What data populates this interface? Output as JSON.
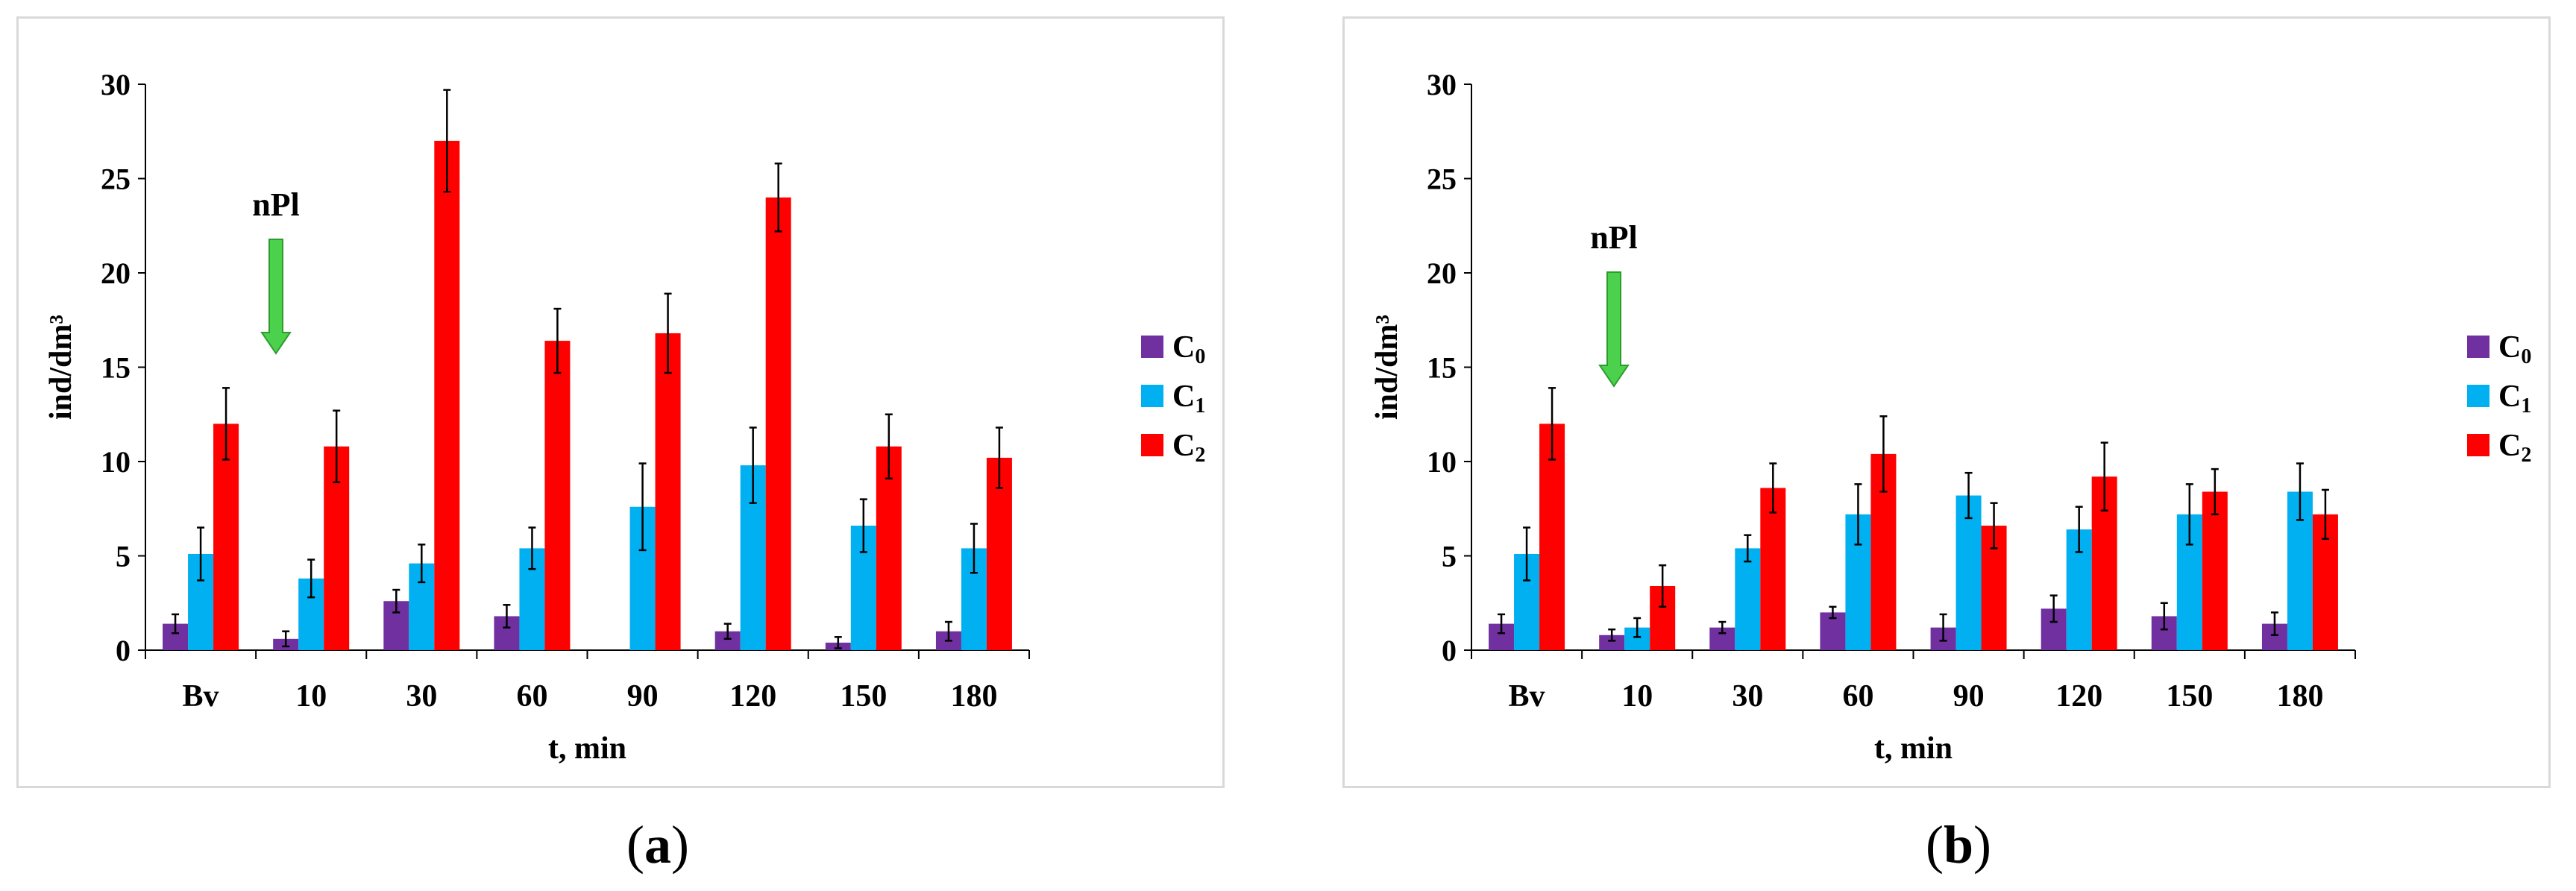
{
  "colors": {
    "c0": "#7030A0",
    "c1": "#00B0F0",
    "c2": "#FF0000",
    "arrow_fill": "#4CD14C",
    "arrow_stroke": "#2E9B2E"
  },
  "chart_data": [
    {
      "type": "bar",
      "panel_label": "a",
      "caption_open": "(",
      "caption_close": ")",
      "categories": [
        "Bv",
        "10",
        "30",
        "60",
        "90",
        "120",
        "150",
        "180"
      ],
      "series": [
        {
          "name": "C0",
          "name_base": "C",
          "name_sub": "0",
          "values": [
            1.4,
            0.6,
            2.6,
            1.8,
            0,
            1.0,
            0.4,
            1.0
          ],
          "errors": [
            0.5,
            0.4,
            0.6,
            0.6,
            0,
            0.4,
            0.3,
            0.5
          ]
        },
        {
          "name": "C1",
          "name_base": "C",
          "name_sub": "1",
          "values": [
            5.1,
            3.8,
            4.6,
            5.4,
            7.6,
            9.8,
            6.6,
            5.4
          ],
          "errors": [
            1.4,
            1.0,
            1.0,
            1.1,
            2.3,
            2.0,
            1.4,
            1.3
          ]
        },
        {
          "name": "C2",
          "name_base": "C",
          "name_sub": "2",
          "values": [
            12.0,
            10.8,
            27.0,
            16.4,
            16.8,
            24.0,
            10.8,
            10.2
          ],
          "errors": [
            1.9,
            1.9,
            2.7,
            1.7,
            2.1,
            1.8,
            1.7,
            1.6
          ]
        }
      ],
      "ylim": [
        0,
        30
      ],
      "yticks": [
        0,
        5,
        10,
        15,
        20,
        25,
        30
      ],
      "xlabel": "t, min",
      "ylabel": "ind/dm³",
      "legend_position": "right",
      "annotation": "nPl"
    },
    {
      "type": "bar",
      "panel_label": "b",
      "caption_open": "(",
      "caption_close": ")",
      "categories": [
        "Bv",
        "10",
        "30",
        "60",
        "90",
        "120",
        "150",
        "180"
      ],
      "series": [
        {
          "name": "C0",
          "name_base": "C",
          "name_sub": "0",
          "values": [
            1.4,
            0.8,
            1.2,
            2.0,
            1.2,
            2.2,
            1.8,
            1.4
          ],
          "errors": [
            0.5,
            0.3,
            0.3,
            0.3,
            0.7,
            0.7,
            0.7,
            0.6
          ]
        },
        {
          "name": "C1",
          "name_base": "C",
          "name_sub": "1",
          "values": [
            5.1,
            1.2,
            5.4,
            7.2,
            8.2,
            6.4,
            7.2,
            8.4
          ],
          "errors": [
            1.4,
            0.5,
            0.7,
            1.6,
            1.2,
            1.2,
            1.6,
            1.5
          ]
        },
        {
          "name": "C2",
          "name_base": "C",
          "name_sub": "2",
          "values": [
            12.0,
            3.4,
            8.6,
            10.4,
            6.6,
            9.2,
            8.4,
            7.2
          ],
          "errors": [
            1.9,
            1.1,
            1.3,
            2.0,
            1.2,
            1.8,
            1.2,
            1.3
          ]
        }
      ],
      "ylim": [
        0,
        30
      ],
      "yticks": [
        0,
        5,
        10,
        15,
        20,
        25,
        30
      ],
      "xlabel": "t, min",
      "ylabel": "ind/dm³",
      "legend_position": "right",
      "annotation": "nPl"
    }
  ]
}
